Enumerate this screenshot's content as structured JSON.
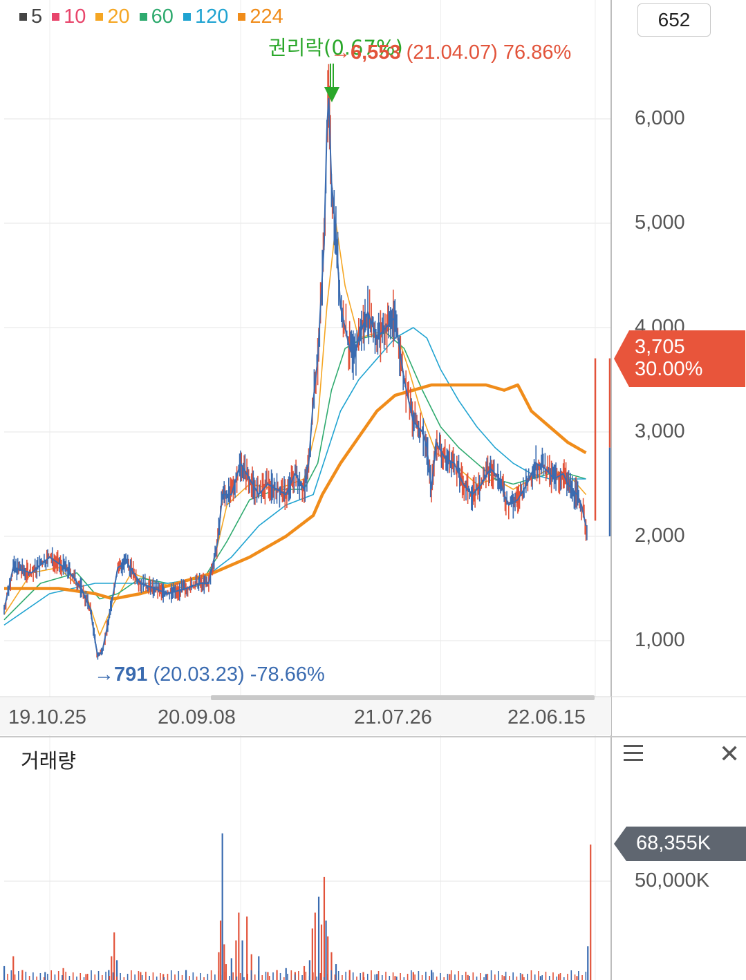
{
  "legend": [
    {
      "label": "5",
      "color": "#444444"
    },
    {
      "label": "10",
      "color": "#e8456b"
    },
    {
      "label": "20",
      "color": "#f5a623"
    },
    {
      "label": "60",
      "color": "#2eaa6e"
    },
    {
      "label": "120",
      "color": "#1fa3d1"
    },
    {
      "label": "224",
      "color": "#f08c1a"
    }
  ],
  "period_count": "652",
  "price_tag": {
    "price": "3,705",
    "change": "30.00%",
    "color": "#e8553b"
  },
  "volume_tag": {
    "value": "68,355K",
    "color": "#5f6670"
  },
  "volume_title": "거래량",
  "volume_tick": "50,000K",
  "annotations": {
    "max": {
      "arrow": "→",
      "value": "6,553",
      "date": "(21.04.07)",
      "pct": "76.86%"
    },
    "min": {
      "arrow": "→",
      "value": "791",
      "date": "(20.03.23)",
      "pct": "-78.66%"
    },
    "event": {
      "label": "권리락(0.67%)"
    }
  },
  "chart_data": {
    "type": "line",
    "ylim": [
      500,
      6900
    ],
    "y_ticks": [
      {
        "value": 1000,
        "label": "1,000"
      },
      {
        "value": 2000,
        "label": "2,000"
      },
      {
        "value": 3000,
        "label": "3,000"
      },
      {
        "value": 4000,
        "label": "4,000"
      },
      {
        "value": 5000,
        "label": "5,000"
      },
      {
        "value": 6000,
        "label": "6,000"
      }
    ],
    "x_ticks": [
      {
        "index": 0,
        "label": "19.10.25"
      },
      {
        "index": 210,
        "label": "20.09.08"
      },
      {
        "index": 430,
        "label": "21.07.26"
      },
      {
        "index": 600,
        "label": "22.06.15"
      }
    ],
    "n_points": 652,
    "price_series": {
      "name": "5",
      "points": [
        [
          0,
          1300
        ],
        [
          10,
          1700
        ],
        [
          30,
          1650
        ],
        [
          50,
          1800
        ],
        [
          70,
          1680
        ],
        [
          85,
          1500
        ],
        [
          95,
          1300
        ],
        [
          100,
          1000
        ],
        [
          103,
          850
        ],
        [
          108,
          900
        ],
        [
          115,
          1200
        ],
        [
          125,
          1700
        ],
        [
          135,
          1750
        ],
        [
          150,
          1550
        ],
        [
          165,
          1500
        ],
        [
          180,
          1450
        ],
        [
          200,
          1500
        ],
        [
          215,
          1550
        ],
        [
          225,
          1550
        ],
        [
          235,
          1950
        ],
        [
          240,
          2400
        ],
        [
          250,
          2400
        ],
        [
          260,
          2700
        ],
        [
          270,
          2550
        ],
        [
          280,
          2400
        ],
        [
          290,
          2500
        ],
        [
          300,
          2450
        ],
        [
          310,
          2400
        ],
        [
          320,
          2600
        ],
        [
          330,
          2450
        ],
        [
          335,
          2700
        ],
        [
          340,
          3300
        ],
        [
          345,
          3700
        ],
        [
          348,
          4200
        ],
        [
          352,
          4800
        ],
        [
          355,
          5900
        ],
        [
          357,
          6200
        ],
        [
          360,
          5400
        ],
        [
          365,
          4900
        ],
        [
          370,
          4200
        ],
        [
          380,
          3800
        ],
        [
          385,
          3700
        ],
        [
          390,
          3900
        ],
        [
          400,
          4150
        ],
        [
          410,
          3900
        ],
        [
          420,
          4000
        ],
        [
          430,
          4100
        ],
        [
          435,
          3800
        ],
        [
          440,
          3500
        ],
        [
          445,
          3300
        ],
        [
          450,
          3100
        ],
        [
          460,
          3000
        ],
        [
          465,
          2850
        ],
        [
          470,
          2450
        ],
        [
          475,
          2900
        ],
        [
          485,
          2750
        ],
        [
          495,
          2700
        ],
        [
          505,
          2500
        ],
        [
          515,
          2400
        ],
        [
          525,
          2500
        ],
        [
          535,
          2650
        ],
        [
          545,
          2550
        ],
        [
          550,
          2400
        ],
        [
          555,
          2300
        ],
        [
          565,
          2350
        ],
        [
          575,
          2500
        ],
        [
          585,
          2700
        ],
        [
          595,
          2650
        ],
        [
          605,
          2550
        ],
        [
          615,
          2600
        ],
        [
          620,
          2500
        ],
        [
          625,
          2450
        ],
        [
          630,
          2400
        ],
        [
          635,
          2300
        ],
        [
          640,
          2100
        ]
      ]
    },
    "ma": [
      {
        "name": "20",
        "color": "#f5a623",
        "width": 1.6,
        "points": [
          [
            0,
            1250
          ],
          [
            30,
            1650
          ],
          [
            60,
            1700
          ],
          [
            90,
            1450
          ],
          [
            105,
            1050
          ],
          [
            120,
            1350
          ],
          [
            140,
            1650
          ],
          [
            170,
            1550
          ],
          [
            200,
            1500
          ],
          [
            225,
            1550
          ],
          [
            245,
            2300
          ],
          [
            270,
            2500
          ],
          [
            300,
            2450
          ],
          [
            330,
            2550
          ],
          [
            345,
            3100
          ],
          [
            355,
            4200
          ],
          [
            365,
            5000
          ],
          [
            375,
            4400
          ],
          [
            390,
            3900
          ],
          [
            410,
            3950
          ],
          [
            430,
            4000
          ],
          [
            445,
            3600
          ],
          [
            460,
            3150
          ],
          [
            475,
            2800
          ],
          [
            500,
            2650
          ],
          [
            520,
            2500
          ],
          [
            540,
            2550
          ],
          [
            560,
            2450
          ],
          [
            580,
            2550
          ],
          [
            600,
            2650
          ],
          [
            625,
            2550
          ],
          [
            640,
            2400
          ]
        ]
      },
      {
        "name": "60",
        "color": "#2eaa6e",
        "width": 1.6,
        "points": [
          [
            0,
            1200
          ],
          [
            40,
            1550
          ],
          [
            80,
            1650
          ],
          [
            105,
            1400
          ],
          [
            125,
            1450
          ],
          [
            150,
            1600
          ],
          [
            180,
            1550
          ],
          [
            220,
            1600
          ],
          [
            245,
            1950
          ],
          [
            270,
            2350
          ],
          [
            300,
            2450
          ],
          [
            330,
            2450
          ],
          [
            345,
            2700
          ],
          [
            360,
            3400
          ],
          [
            375,
            3800
          ],
          [
            395,
            3900
          ],
          [
            420,
            3950
          ],
          [
            440,
            3800
          ],
          [
            460,
            3400
          ],
          [
            480,
            3050
          ],
          [
            500,
            2850
          ],
          [
            520,
            2700
          ],
          [
            540,
            2550
          ],
          [
            560,
            2500
          ],
          [
            580,
            2550
          ],
          [
            600,
            2600
          ],
          [
            620,
            2600
          ],
          [
            640,
            2550
          ]
        ]
      },
      {
        "name": "120",
        "color": "#1fa3d1",
        "width": 1.6,
        "points": [
          [
            0,
            1150
          ],
          [
            50,
            1450
          ],
          [
            100,
            1550
          ],
          [
            140,
            1550
          ],
          [
            180,
            1550
          ],
          [
            220,
            1600
          ],
          [
            250,
            1800
          ],
          [
            280,
            2100
          ],
          [
            310,
            2300
          ],
          [
            340,
            2400
          ],
          [
            355,
            2800
          ],
          [
            370,
            3200
          ],
          [
            390,
            3500
          ],
          [
            410,
            3700
          ],
          [
            430,
            3900
          ],
          [
            450,
            4000
          ],
          [
            465,
            3900
          ],
          [
            480,
            3600
          ],
          [
            500,
            3300
          ],
          [
            520,
            3050
          ],
          [
            540,
            2850
          ],
          [
            560,
            2700
          ],
          [
            580,
            2600
          ],
          [
            600,
            2550
          ],
          [
            620,
            2550
          ],
          [
            640,
            2550
          ]
        ]
      },
      {
        "name": "224",
        "color": "#f08c1a",
        "width": 4.5,
        "points": [
          [
            0,
            1500
          ],
          [
            60,
            1500
          ],
          [
            100,
            1450
          ],
          [
            120,
            1400
          ],
          [
            150,
            1450
          ],
          [
            190,
            1550
          ],
          [
            230,
            1650
          ],
          [
            270,
            1800
          ],
          [
            310,
            2000
          ],
          [
            340,
            2200
          ],
          [
            350,
            2400
          ],
          [
            370,
            2700
          ],
          [
            390,
            2950
          ],
          [
            410,
            3200
          ],
          [
            430,
            3350
          ],
          [
            450,
            3400
          ],
          [
            470,
            3450
          ],
          [
            490,
            3450
          ],
          [
            510,
            3450
          ],
          [
            530,
            3450
          ],
          [
            550,
            3400
          ],
          [
            565,
            3450
          ],
          [
            580,
            3200
          ],
          [
            600,
            3050
          ],
          [
            620,
            2900
          ],
          [
            640,
            2800
          ]
        ]
      }
    ]
  },
  "volume_data": {
    "type": "bar",
    "ylim": [
      0,
      95000
    ],
    "bars": [
      [
        0,
        7000
      ],
      [
        10,
        12000
      ],
      [
        20,
        5000
      ],
      [
        45,
        4000
      ],
      [
        65,
        6000
      ],
      [
        90,
        3000
      ],
      [
        115,
        5000
      ],
      [
        118,
        12000
      ],
      [
        121,
        24000
      ],
      [
        124,
        10000
      ],
      [
        150,
        4000
      ],
      [
        175,
        3000
      ],
      [
        200,
        5000
      ],
      [
        236,
        14000
      ],
      [
        238,
        30000
      ],
      [
        240,
        74000
      ],
      [
        242,
        18000
      ],
      [
        244,
        8000
      ],
      [
        250,
        11000
      ],
      [
        255,
        20000
      ],
      [
        258,
        34000
      ],
      [
        262,
        20000
      ],
      [
        267,
        32000
      ],
      [
        272,
        13000
      ],
      [
        280,
        12000
      ],
      [
        290,
        4000
      ],
      [
        300,
        5000
      ],
      [
        310,
        6000
      ],
      [
        320,
        4000
      ],
      [
        330,
        7000
      ],
      [
        336,
        10000
      ],
      [
        339,
        26000
      ],
      [
        342,
        34000
      ],
      [
        346,
        42000
      ],
      [
        349,
        28000
      ],
      [
        352,
        52000
      ],
      [
        354,
        30000
      ],
      [
        356,
        22000
      ],
      [
        360,
        14000
      ],
      [
        365,
        8000
      ],
      [
        380,
        5000
      ],
      [
        395,
        4000
      ],
      [
        410,
        3000
      ],
      [
        430,
        2000
      ],
      [
        450,
        4000
      ],
      [
        470,
        5000
      ],
      [
        490,
        3000
      ],
      [
        510,
        2500
      ],
      [
        530,
        3000
      ],
      [
        550,
        2000
      ],
      [
        570,
        3000
      ],
      [
        590,
        2000
      ],
      [
        610,
        3000
      ],
      [
        630,
        2000
      ],
      [
        642,
        17000
      ],
      [
        645,
        68355
      ]
    ]
  }
}
